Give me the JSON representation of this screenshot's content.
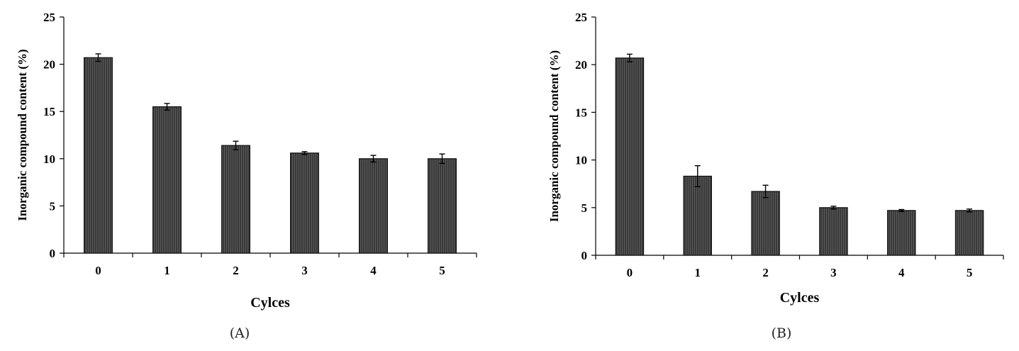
{
  "chart_data": [
    {
      "type": "bar",
      "panel_label": "(A)",
      "xlabel": "Cylces",
      "ylabel": "Inorganic compound content (%)",
      "categories": [
        "0",
        "1",
        "2",
        "3",
        "4",
        "5"
      ],
      "values": [
        20.7,
        15.5,
        11.4,
        10.6,
        10.0,
        10.0
      ],
      "errors": [
        0.4,
        0.35,
        0.45,
        0.15,
        0.35,
        0.5
      ],
      "ylim": [
        0,
        25
      ],
      "yticks": [
        "0",
        "5",
        "10",
        "15",
        "20",
        "25"
      ],
      "grid": false,
      "bar_color": "#3a3a3a"
    },
    {
      "type": "bar",
      "panel_label": "(B)",
      "xlabel": "Cylces",
      "ylabel": "Inorganic compound content (%)",
      "categories": [
        "0",
        "1",
        "2",
        "3",
        "4",
        "5"
      ],
      "values": [
        20.7,
        8.3,
        6.7,
        5.0,
        4.7,
        4.7
      ],
      "errors": [
        0.4,
        1.1,
        0.65,
        0.15,
        0.1,
        0.15
      ],
      "ylim": [
        0,
        25
      ],
      "yticks": [
        "0",
        "5",
        "10",
        "15",
        "20",
        "25"
      ],
      "grid": false,
      "bar_color": "#3a3a3a"
    }
  ]
}
